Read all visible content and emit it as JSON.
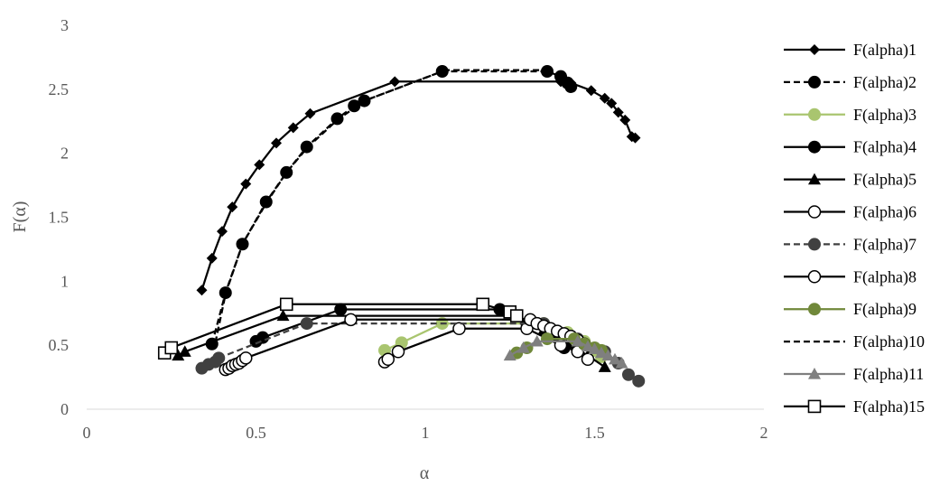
{
  "chart_data": {
    "type": "scatter",
    "xlabel": "α",
    "ylabel": "F(α)",
    "xlim": [
      0,
      2
    ],
    "ylim": [
      0,
      3
    ],
    "xticks": [
      0,
      0.5,
      1,
      1.5,
      2
    ],
    "xtick_labels": [
      "0",
      "0.5",
      "1",
      "1.5",
      "2"
    ],
    "yticks": [
      0,
      0.5,
      1,
      1.5,
      2,
      2.5,
      3
    ],
    "ytick_labels": [
      "0",
      "0.5",
      "1",
      "1.5",
      "2",
      "2.5",
      "3"
    ],
    "grid": false,
    "legend_position": "right",
    "series": [
      {
        "name": "F(alpha)1",
        "color": "#000000",
        "dash": "solid",
        "marker": "diamond",
        "points": [
          [
            0.34,
            0.93
          ],
          [
            0.37,
            1.18
          ],
          [
            0.4,
            1.39
          ],
          [
            0.43,
            1.58
          ],
          [
            0.47,
            1.76
          ],
          [
            0.51,
            1.91
          ],
          [
            0.56,
            2.08
          ],
          [
            0.61,
            2.2
          ],
          [
            0.66,
            2.31
          ],
          [
            0.91,
            2.56
          ],
          [
            1.4,
            2.56
          ],
          [
            1.43,
            2.55
          ],
          [
            1.49,
            2.49
          ],
          [
            1.53,
            2.43
          ],
          [
            1.55,
            2.39
          ],
          [
            1.57,
            2.32
          ],
          [
            1.59,
            2.26
          ],
          [
            1.61,
            2.13
          ],
          [
            1.62,
            2.12
          ]
        ]
      },
      {
        "name": "F(alpha)2",
        "color": "#000000",
        "dash": "dashed",
        "marker": "circle",
        "points": [
          [
            0.37,
            0.51
          ],
          [
            0.41,
            0.91
          ],
          [
            0.46,
            1.29
          ],
          [
            0.53,
            1.62
          ],
          [
            0.59,
            1.85
          ],
          [
            0.65,
            2.05
          ],
          [
            0.74,
            2.27
          ],
          [
            0.79,
            2.37
          ],
          [
            0.82,
            2.41
          ],
          [
            1.05,
            2.64
          ],
          [
            1.36,
            2.64
          ],
          [
            1.4,
            2.6
          ],
          [
            1.42,
            2.55
          ],
          [
            1.43,
            2.52
          ]
        ]
      },
      {
        "name": "F(alpha)3",
        "color": "#a9c56f",
        "dash": "solid",
        "marker": "circle",
        "points": [
          [
            0.88,
            0.46
          ],
          [
            0.93,
            0.52
          ],
          [
            1.05,
            0.67
          ],
          [
            1.35,
            0.67
          ],
          [
            1.42,
            0.6
          ],
          [
            1.47,
            0.53
          ],
          [
            1.5,
            0.46
          ],
          [
            1.52,
            0.41
          ]
        ]
      },
      {
        "name": "F(alpha)4",
        "color": "#000000",
        "dash": "solid",
        "marker": "circle",
        "points": [
          [
            0.5,
            0.53
          ],
          [
            0.52,
            0.56
          ],
          [
            0.75,
            0.78
          ],
          [
            1.22,
            0.78
          ],
          [
            1.3,
            0.67
          ],
          [
            1.38,
            0.57
          ],
          [
            1.41,
            0.48
          ]
        ]
      },
      {
        "name": "F(alpha)5",
        "color": "#000000",
        "dash": "solid",
        "marker": "triangle",
        "points": [
          [
            0.27,
            0.42
          ],
          [
            0.29,
            0.45
          ],
          [
            0.58,
            0.73
          ],
          [
            1.27,
            0.73
          ],
          [
            1.35,
            0.62
          ],
          [
            1.42,
            0.51
          ],
          [
            1.48,
            0.42
          ],
          [
            1.53,
            0.33
          ]
        ]
      },
      {
        "name": "F(alpha)6",
        "color": "#000000",
        "dash": "solid",
        "marker": "circle-open",
        "points": [
          [
            0.88,
            0.37
          ],
          [
            0.89,
            0.39
          ],
          [
            0.92,
            0.45
          ],
          [
            1.1,
            0.63
          ],
          [
            1.3,
            0.63
          ],
          [
            1.4,
            0.5
          ],
          [
            1.45,
            0.45
          ],
          [
            1.48,
            0.39
          ]
        ]
      },
      {
        "name": "F(alpha)7",
        "color": "#404040",
        "dash": "dashed",
        "marker": "circle-dark",
        "points": [
          [
            0.34,
            0.32
          ],
          [
            0.36,
            0.35
          ],
          [
            0.38,
            0.37
          ],
          [
            0.39,
            0.4
          ],
          [
            0.65,
            0.67
          ],
          [
            1.35,
            0.67
          ],
          [
            1.45,
            0.55
          ],
          [
            1.53,
            0.45
          ],
          [
            1.57,
            0.36
          ],
          [
            1.6,
            0.27
          ],
          [
            1.63,
            0.22
          ]
        ]
      },
      {
        "name": "F(alpha)8",
        "color": "#000000",
        "dash": "solid",
        "marker": "circle-open",
        "points": [
          [
            0.41,
            0.31
          ],
          [
            0.42,
            0.32
          ],
          [
            0.43,
            0.34
          ],
          [
            0.44,
            0.35
          ],
          [
            0.45,
            0.36
          ],
          [
            0.46,
            0.38
          ],
          [
            0.47,
            0.4
          ],
          [
            0.78,
            0.7
          ],
          [
            1.31,
            0.7
          ],
          [
            1.33,
            0.67
          ],
          [
            1.35,
            0.65
          ],
          [
            1.37,
            0.63
          ],
          [
            1.39,
            0.61
          ],
          [
            1.41,
            0.59
          ],
          [
            1.43,
            0.57
          ],
          [
            1.45,
            0.54
          ],
          [
            1.47,
            0.51
          ]
        ]
      },
      {
        "name": "F(alpha)9",
        "color": "#70883a",
        "dash": "solid",
        "marker": "circle",
        "points": [
          [
            1.27,
            0.44
          ],
          [
            1.3,
            0.48
          ],
          [
            1.36,
            0.55
          ],
          [
            1.44,
            0.55
          ],
          [
            1.47,
            0.51
          ],
          [
            1.5,
            0.48
          ],
          [
            1.52,
            0.46
          ]
        ]
      },
      {
        "name": "F(alpha)10",
        "color": "#000000",
        "dash": "dashed",
        "marker": "none",
        "points": [
          [
            0.38,
            0.52
          ],
          [
            0.41,
            0.9
          ],
          [
            0.46,
            1.29
          ],
          [
            0.53,
            1.61
          ],
          [
            0.59,
            1.85
          ],
          [
            0.65,
            2.04
          ],
          [
            0.74,
            2.26
          ],
          [
            0.82,
            2.41
          ],
          [
            1.06,
            2.65
          ],
          [
            1.36,
            2.65
          ]
        ]
      },
      {
        "name": "F(alpha)11",
        "color": "#7f7f7f",
        "dash": "solid",
        "marker": "triangle",
        "points": [
          [
            1.25,
            0.42
          ],
          [
            1.29,
            0.48
          ],
          [
            1.33,
            0.53
          ],
          [
            1.45,
            0.53
          ],
          [
            1.48,
            0.49
          ],
          [
            1.5,
            0.47
          ],
          [
            1.52,
            0.44
          ],
          [
            1.54,
            0.42
          ],
          [
            1.56,
            0.39
          ],
          [
            1.58,
            0.36
          ]
        ]
      },
      {
        "name": "F(alpha)15",
        "color": "#000000",
        "dash": "solid",
        "marker": "square-open",
        "points": [
          [
            0.23,
            0.44
          ],
          [
            0.25,
            0.48
          ],
          [
            0.59,
            0.82
          ],
          [
            1.17,
            0.82
          ],
          [
            1.25,
            0.76
          ],
          [
            1.27,
            0.73
          ]
        ]
      }
    ]
  }
}
